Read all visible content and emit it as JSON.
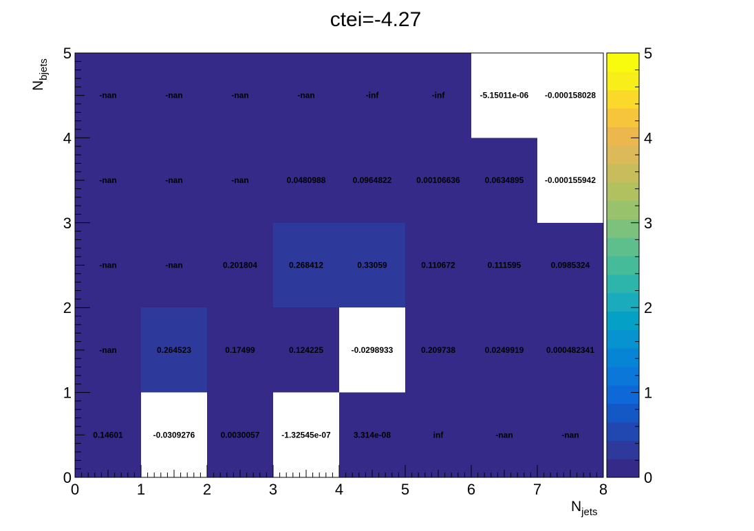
{
  "chart_data": {
    "type": "heatmap",
    "title": "ctei=-4.27",
    "xlabel": {
      "main": "N",
      "sub": "jets"
    },
    "ylabel": {
      "main": "N",
      "sub": "bjets"
    },
    "xlim": [
      0,
      8
    ],
    "ylim": [
      0,
      5
    ],
    "x_ticks": [
      "0",
      "1",
      "2",
      "3",
      "4",
      "5",
      "6",
      "7",
      "8"
    ],
    "y_ticks": [
      "0",
      "1",
      "2",
      "3",
      "4",
      "5"
    ],
    "colorbar": {
      "min": 0,
      "max": 5,
      "ticks": [
        "0",
        "1",
        "2",
        "3",
        "4",
        "5"
      ]
    },
    "palette": [
      "#352a87",
      "#2d3a9c",
      "#2148b0",
      "#1458c5",
      "#0f68d8",
      "#0a77d9",
      "#0785d5",
      "#0693d0",
      "#05a0c6",
      "#1aabbd",
      "#2db4ab",
      "#45bb9a",
      "#5ebf8d",
      "#7cc27c",
      "#98c36c",
      "#b2c160",
      "#c8bd5c",
      "#dcba59",
      "#ecb74c",
      "#f7c53b",
      "#fbd92a",
      "#f8ef1a",
      "#f9fb0e"
    ],
    "rows": [
      {
        "y": [
          0,
          1
        ],
        "cells": [
          {
            "label": "0.14601",
            "value": 0.14601
          },
          {
            "label": "-0.0309276",
            "value": -0.0309276
          },
          {
            "label": "0.0030057",
            "value": 0.0030057
          },
          {
            "label": "-1.32545e-07",
            "value": -1.32545e-07
          },
          {
            "label": "3.314e-08",
            "value": 3.314e-08
          },
          {
            "label": "inf",
            "value": "inf"
          },
          {
            "label": "-nan",
            "value": "nan"
          },
          {
            "label": "-nan",
            "value": "nan"
          }
        ]
      },
      {
        "y": [
          1,
          2
        ],
        "cells": [
          {
            "label": "-nan",
            "value": "nan"
          },
          {
            "label": "0.264523",
            "value": 0.264523
          },
          {
            "label": "0.17499",
            "value": 0.17499
          },
          {
            "label": "0.124225",
            "value": 0.124225
          },
          {
            "label": "-0.0298933",
            "value": -0.0298933
          },
          {
            "label": "0.209738",
            "value": 0.209738
          },
          {
            "label": "0.0249919",
            "value": 0.0249919
          },
          {
            "label": "0.000482341",
            "value": 0.000482341
          }
        ]
      },
      {
        "y": [
          2,
          3
        ],
        "cells": [
          {
            "label": "-nan",
            "value": "nan"
          },
          {
            "label": "-nan",
            "value": "nan"
          },
          {
            "label": "0.201804",
            "value": 0.201804
          },
          {
            "label": "0.268412",
            "value": 0.268412
          },
          {
            "label": "0.33059",
            "value": 0.33059
          },
          {
            "label": "0.110672",
            "value": 0.110672
          },
          {
            "label": "0.111595",
            "value": 0.111595
          },
          {
            "label": "0.0985324",
            "value": 0.0985324
          }
        ]
      },
      {
        "y": [
          3,
          4
        ],
        "cells": [
          {
            "label": "-nan",
            "value": "nan"
          },
          {
            "label": "-nan",
            "value": "nan"
          },
          {
            "label": "-nan",
            "value": "nan"
          },
          {
            "label": "0.0480988",
            "value": 0.0480988
          },
          {
            "label": "0.0964822",
            "value": 0.0964822
          },
          {
            "label": "0.00106636",
            "value": 0.00106636
          },
          {
            "label": "0.0634895",
            "value": 0.0634895
          },
          {
            "label": "-0.000155942",
            "value": -0.000155942
          }
        ]
      },
      {
        "y": [
          4,
          5
        ],
        "cells": [
          {
            "label": "-nan",
            "value": "nan"
          },
          {
            "label": "-nan",
            "value": "nan"
          },
          {
            "label": "-nan",
            "value": "nan"
          },
          {
            "label": "-nan",
            "value": "nan"
          },
          {
            "label": "-inf",
            "value": "-inf"
          },
          {
            "label": "-inf",
            "value": "-inf"
          },
          {
            "label": "-5.15011e-06",
            "value": -5.15011e-06
          },
          {
            "label": "-0.000158028",
            "value": -0.000158028
          }
        ]
      }
    ]
  }
}
